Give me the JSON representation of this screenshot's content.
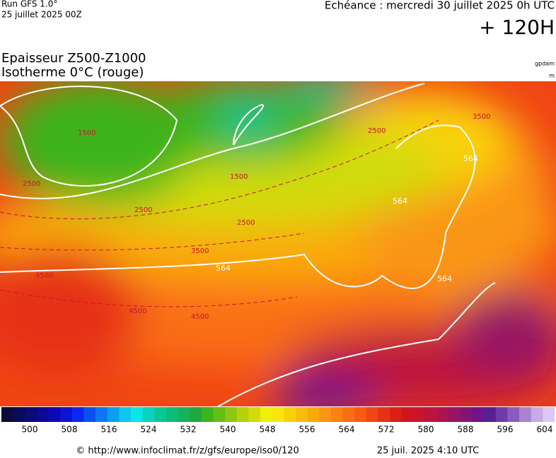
{
  "header": {
    "run": "Run GFS 1.0°",
    "run_date": "25 juillet 2025 00Z",
    "valid": "Echéance : mercredi 30 juillet 2025 0h UTC",
    "lead": "+ 120H"
  },
  "legend": {
    "line1": "Epaisseur Z500-Z1000",
    "line2": "Isotherme 0°C (rouge)",
    "unit1": "gpdam",
    "unit2": "m"
  },
  "map": {
    "contour_labels": [
      "1500",
      "1500",
      "2500",
      "2500",
      "2500",
      "2500",
      "3500",
      "3500",
      "4500",
      "4500",
      "4500",
      "564",
      "564",
      "564",
      "564"
    ]
  },
  "colorbar": {
    "ticks": [
      500,
      508,
      516,
      524,
      532,
      540,
      548,
      556,
      564,
      572,
      580,
      588,
      596,
      604
    ],
    "colors": [
      "#0a0a3c",
      "#0a0a5a",
      "#0a0a78",
      "#0a0a96",
      "#0a0ab4",
      "#0a14d2",
      "#0a28f0",
      "#0a50f0",
      "#0a78f0",
      "#0aa0f0",
      "#0ac8f0",
      "#0ae6e6",
      "#0ad2be",
      "#0ac896",
      "#0abe78",
      "#14b45a",
      "#1eaa3c",
      "#3cb41e",
      "#64be14",
      "#8cc814",
      "#b4d20a",
      "#d2dc0a",
      "#f0f00a",
      "#fae60a",
      "#fad20a",
      "#fabe0a",
      "#faaa0a",
      "#fa9614",
      "#fa8214",
      "#fa6e14",
      "#fa5a14",
      "#f04614",
      "#e63214",
      "#dc1e14",
      "#d2141e",
      "#c8142d",
      "#be143c",
      "#aa1450",
      "#961464",
      "#821478",
      "#6e148c",
      "#5a1e96",
      "#6e3caa",
      "#8c5abe",
      "#aa82d2",
      "#c8aae6",
      "#dcc8f0"
    ]
  },
  "footer": {
    "source": "© http://www.infoclimat.fr/z/gfs/europe/iso0/120",
    "issued": "25 juil. 2025  4:10 UTC"
  }
}
